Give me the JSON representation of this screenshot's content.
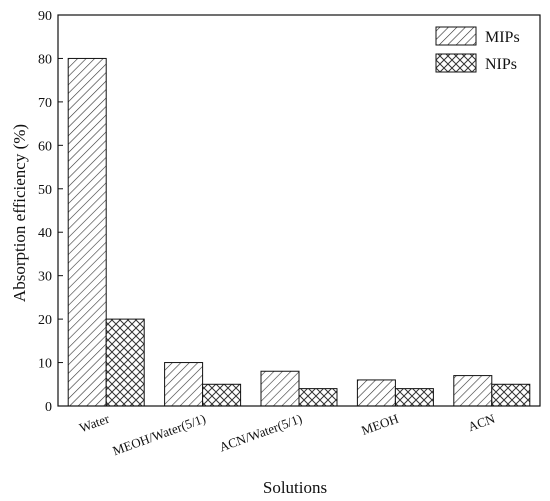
{
  "chart_data": {
    "type": "bar",
    "categories": [
      "Water",
      "MEOH/Water(5/1)",
      "ACN/Water(5/1)",
      "MEOH",
      "ACN"
    ],
    "series": [
      {
        "name": "MIPs",
        "values": [
          80,
          10,
          8,
          6,
          7
        ],
        "pattern": "diagonal-hatch"
      },
      {
        "name": "NIPs",
        "values": [
          20,
          5,
          4,
          4,
          5
        ],
        "pattern": "cross-hatch"
      }
    ],
    "xlabel": "Solutions",
    "ylabel": "Absorption efficiency (%)",
    "ylim": [
      0,
      90
    ],
    "yticks": [
      0,
      10,
      20,
      30,
      40,
      50,
      60,
      70,
      80,
      90
    ],
    "legend_position": "top-right",
    "grid": false,
    "colors": {
      "axis": "#111111",
      "bar_fill": "#ffffff",
      "hatch": "#333333"
    }
  }
}
